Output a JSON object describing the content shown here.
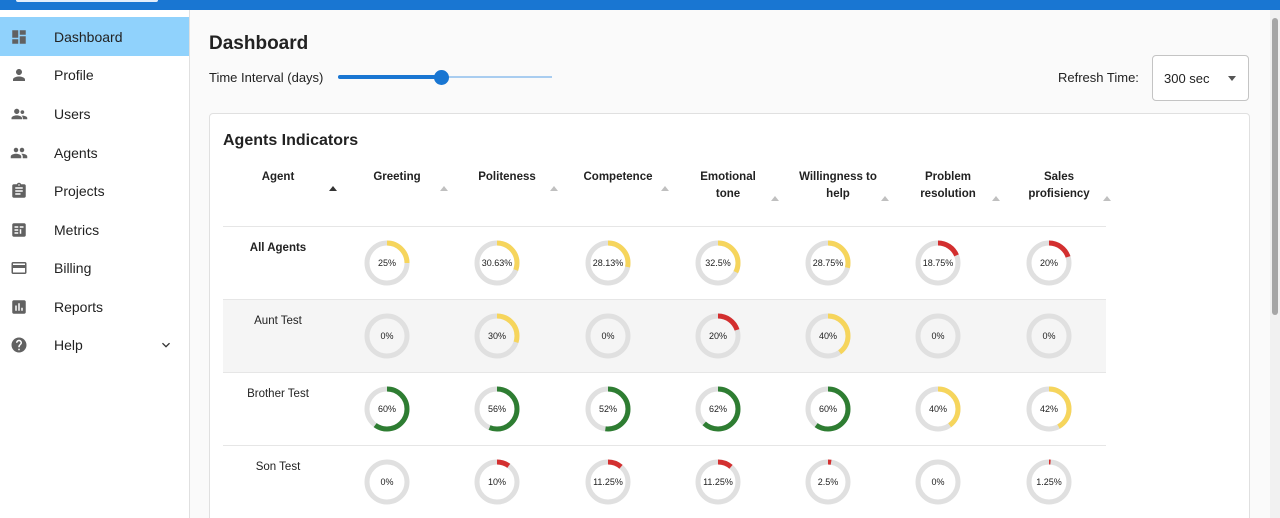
{
  "colors": {
    "accent": "#1976d2",
    "active_nav": "#90d2fc",
    "green": "#2e7d32",
    "yellow": "#f6d55c",
    "red": "#d32f2f",
    "ring_bg": "#e0e0e0"
  },
  "sidebar": {
    "items": [
      {
        "label": "Dashboard",
        "icon": "dashboard-icon",
        "active": true
      },
      {
        "label": "Profile",
        "icon": "person-icon"
      },
      {
        "label": "Users",
        "icon": "users-icon"
      },
      {
        "label": "Agents",
        "icon": "group-icon"
      },
      {
        "label": "Projects",
        "icon": "clipboard-icon"
      },
      {
        "label": "Metrics",
        "icon": "metrics-icon"
      },
      {
        "label": "Billing",
        "icon": "credit-card-icon"
      },
      {
        "label": "Reports",
        "icon": "bar-chart-icon"
      },
      {
        "label": "Help",
        "icon": "help-icon",
        "expandable": true
      }
    ]
  },
  "header": {
    "title": "Dashboard",
    "time_interval_label": "Time Interval (days)",
    "time_interval_fraction": 0.48,
    "refresh_label": "Refresh Time:",
    "refresh_value": "300 sec"
  },
  "card": {
    "title": "Agents Indicators",
    "columns": [
      {
        "line1": "Agent",
        "line2": ""
      },
      {
        "line1": "Greeting",
        "line2": ""
      },
      {
        "line1": "Politeness",
        "line2": ""
      },
      {
        "line1": "Competence",
        "line2": ""
      },
      {
        "line1": "Emotional",
        "line2": "tone"
      },
      {
        "line1": "Willingness to",
        "line2": "help"
      },
      {
        "line1": "Problem",
        "line2": "resolution"
      },
      {
        "line1": "Sales",
        "line2": "profisiency"
      }
    ],
    "rows": [
      {
        "agent": "All Agents",
        "bold": true,
        "values": [
          {
            "label": "25%",
            "value": 25,
            "color": "#f6d55c"
          },
          {
            "label": "30.63%",
            "value": 30.63,
            "color": "#f6d55c"
          },
          {
            "label": "28.13%",
            "value": 28.13,
            "color": "#f6d55c"
          },
          {
            "label": "32.5%",
            "value": 32.5,
            "color": "#f6d55c"
          },
          {
            "label": "28.75%",
            "value": 28.75,
            "color": "#f6d55c"
          },
          {
            "label": "18.75%",
            "value": 18.75,
            "color": "#d32f2f"
          },
          {
            "label": "20%",
            "value": 20,
            "color": "#d32f2f"
          }
        ]
      },
      {
        "agent": "Aunt Test",
        "bold": false,
        "shaded": true,
        "values": [
          {
            "label": "0%",
            "value": 0,
            "color": "#d32f2f"
          },
          {
            "label": "30%",
            "value": 30,
            "color": "#f6d55c"
          },
          {
            "label": "0%",
            "value": 0,
            "color": "#d32f2f"
          },
          {
            "label": "20%",
            "value": 20,
            "color": "#d32f2f"
          },
          {
            "label": "40%",
            "value": 40,
            "color": "#f6d55c"
          },
          {
            "label": "0%",
            "value": 0,
            "color": "#d32f2f"
          },
          {
            "label": "0%",
            "value": 0,
            "color": "#d32f2f"
          }
        ]
      },
      {
        "agent": "Brother Test",
        "bold": false,
        "values": [
          {
            "label": "60%",
            "value": 60,
            "color": "#2e7d32"
          },
          {
            "label": "56%",
            "value": 56,
            "color": "#2e7d32"
          },
          {
            "label": "52%",
            "value": 52,
            "color": "#2e7d32"
          },
          {
            "label": "62%",
            "value": 62,
            "color": "#2e7d32"
          },
          {
            "label": "60%",
            "value": 60,
            "color": "#2e7d32"
          },
          {
            "label": "40%",
            "value": 40,
            "color": "#f6d55c"
          },
          {
            "label": "42%",
            "value": 42,
            "color": "#f6d55c"
          }
        ]
      },
      {
        "agent": "Son Test",
        "bold": false,
        "values": [
          {
            "label": "0%",
            "value": 0,
            "color": "#d32f2f"
          },
          {
            "label": "10%",
            "value": 10,
            "color": "#d32f2f"
          },
          {
            "label": "11.25%",
            "value": 11.25,
            "color": "#d32f2f"
          },
          {
            "label": "11.25%",
            "value": 11.25,
            "color": "#d32f2f"
          },
          {
            "label": "2.5%",
            "value": 2.5,
            "color": "#d32f2f"
          },
          {
            "label": "0%",
            "value": 0,
            "color": "#d32f2f"
          },
          {
            "label": "1.25%",
            "value": 1.25,
            "color": "#d32f2f"
          }
        ]
      }
    ]
  }
}
